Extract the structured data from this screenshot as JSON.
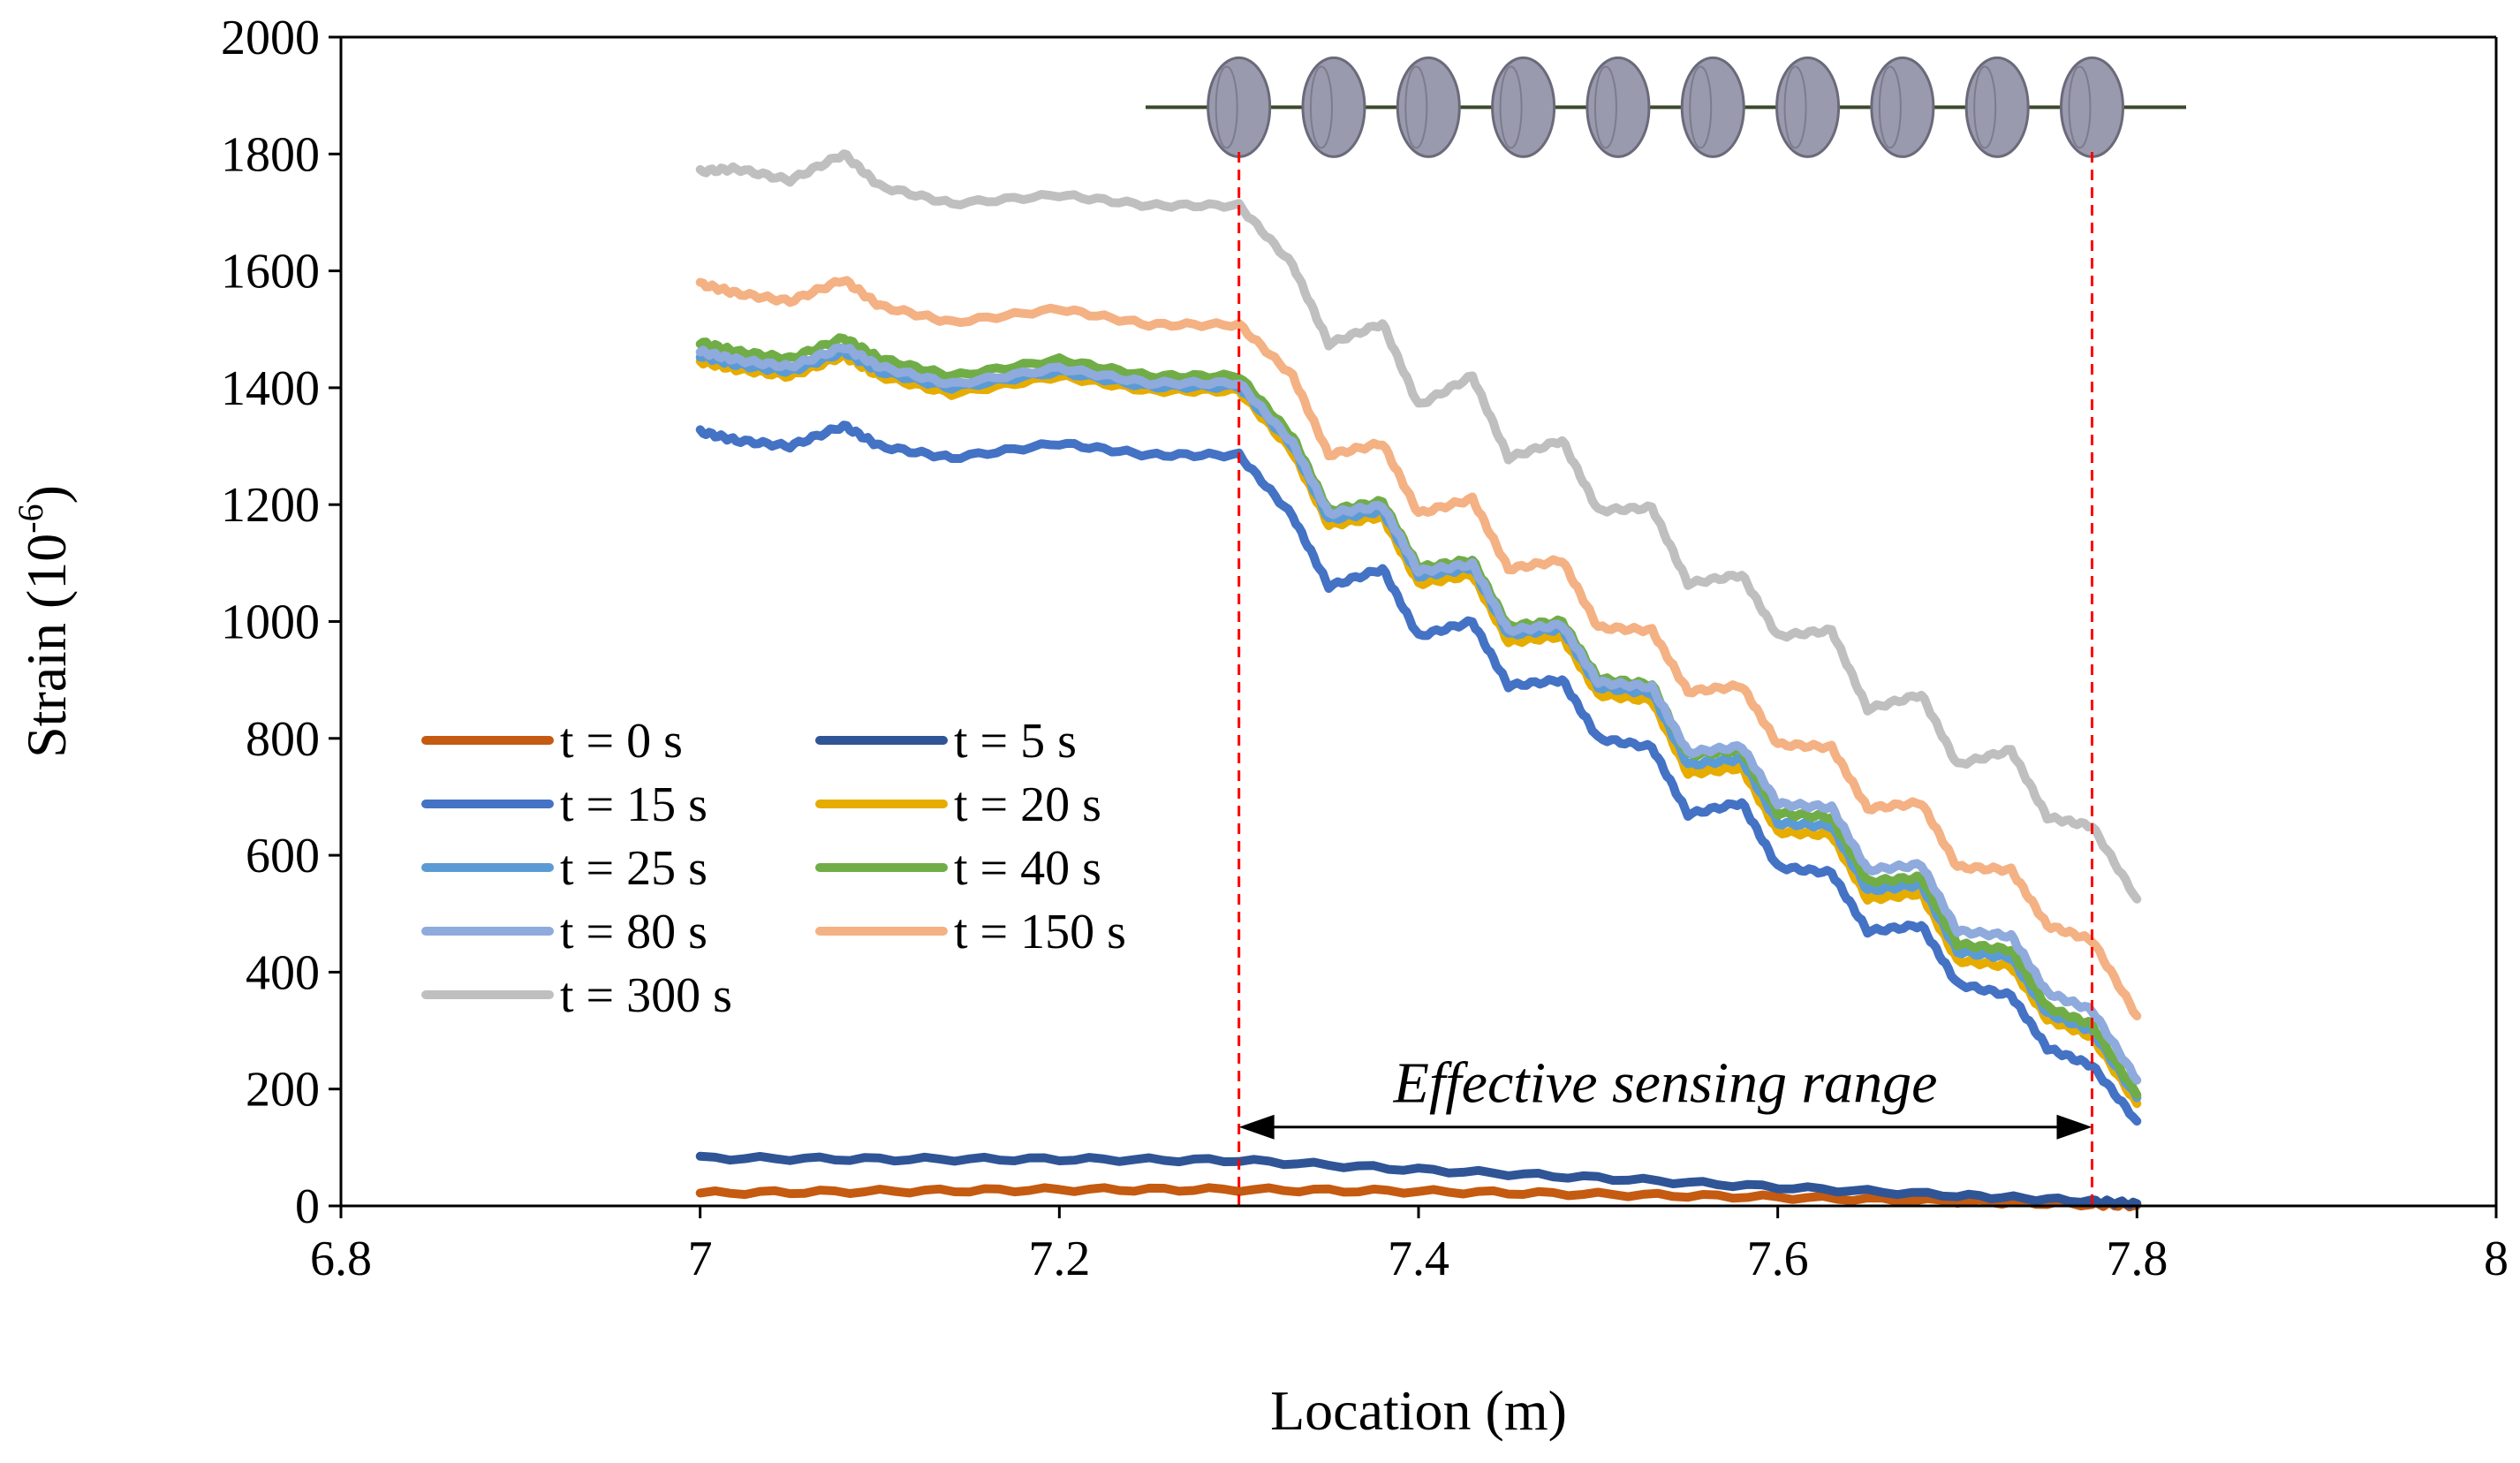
{
  "chart_data": {
    "type": "line",
    "title": "",
    "xlabel": "Location (m)",
    "ylabel": "Strain (10",
    "ylabel_sup": "-6",
    "ylabel_close": ")",
    "xlim": [
      6.8,
      8
    ],
    "ylim": [
      0,
      2000
    ],
    "xticks": [
      6.8,
      7,
      7.2,
      7.4,
      7.6,
      7.8,
      8
    ],
    "xtick_labels": [
      "6.8",
      "7",
      "7.2",
      "7.4",
      "7.6",
      "7.8",
      "8"
    ],
    "yticks": [
      0,
      200,
      400,
      600,
      800,
      1000,
      1200,
      1400,
      1600,
      1800,
      2000
    ],
    "ytick_labels": [
      "0",
      "200",
      "400",
      "600",
      "800",
      "1000",
      "1200",
      "1400",
      "1600",
      "1800",
      "2000"
    ],
    "grid": false,
    "legend_position": "lower-left",
    "annotation": {
      "text": "Effective sensing range",
      "x_start": 7.3,
      "x_end": 7.775,
      "y": 135
    },
    "sensing_marks": [
      7.3,
      7.775
    ],
    "sensor_elements": {
      "count": 10,
      "x_start": 7.3,
      "x_end": 7.775,
      "y": 1880
    },
    "series": [
      {
        "name": "t = 0 s",
        "color": "#C55A11",
        "x": [
          7.0,
          7.1,
          7.2,
          7.3,
          7.4,
          7.5,
          7.6,
          7.7,
          7.775,
          7.8
        ],
        "values": [
          22,
          25,
          28,
          28,
          25,
          20,
          15,
          8,
          3,
          1
        ]
      },
      {
        "name": "t = 5 s",
        "color": "#2F5597",
        "x": [
          7.0,
          7.1,
          7.2,
          7.3,
          7.4,
          7.5,
          7.6,
          7.7,
          7.775,
          7.8
        ],
        "values": [
          82,
          80,
          80,
          78,
          62,
          48,
          32,
          18,
          8,
          4
        ]
      },
      {
        "name": "t = 15 s",
        "color": "#4472C4",
        "x": [
          7.0,
          7.02,
          7.05,
          7.08,
          7.1,
          7.14,
          7.2,
          7.25,
          7.3,
          7.33,
          7.35,
          7.38,
          7.4,
          7.43,
          7.45,
          7.48,
          7.5,
          7.53,
          7.55,
          7.58,
          7.6,
          7.63,
          7.65,
          7.68,
          7.7,
          7.73,
          7.75,
          7.775,
          7.8
        ],
        "values": [
          1325,
          1310,
          1300,
          1335,
          1300,
          1280,
          1305,
          1285,
          1285,
          1180,
          1060,
          1090,
          975,
          1000,
          890,
          900,
          800,
          785,
          670,
          690,
          580,
          570,
          470,
          480,
          380,
          360,
          270,
          240,
          145
        ]
      },
      {
        "name": "t = 20 s",
        "color": "#E6AC00",
        "x": [
          7.0,
          7.02,
          7.05,
          7.08,
          7.1,
          7.14,
          7.2,
          7.25,
          7.3,
          7.33,
          7.35,
          7.38,
          7.4,
          7.43,
          7.45,
          7.48,
          7.5,
          7.53,
          7.55,
          7.58,
          7.6,
          7.63,
          7.65,
          7.68,
          7.7,
          7.73,
          7.75,
          7.775,
          7.8
        ],
        "values": [
          1445,
          1432,
          1420,
          1455,
          1420,
          1390,
          1420,
          1395,
          1395,
          1290,
          1165,
          1180,
          1065,
          1080,
          965,
          975,
          875,
          865,
          740,
          750,
          640,
          635,
          525,
          535,
          420,
          410,
          320,
          290,
          175
        ]
      },
      {
        "name": "t = 25 s",
        "color": "#5B9BD5",
        "x": [
          7.0,
          7.02,
          7.05,
          7.08,
          7.1,
          7.14,
          7.2,
          7.25,
          7.3,
          7.33,
          7.35,
          7.38,
          7.4,
          7.43,
          7.45,
          7.48,
          7.5,
          7.53,
          7.55,
          7.58,
          7.6,
          7.63,
          7.65,
          7.68,
          7.7,
          7.73,
          7.75,
          7.775,
          7.8
        ],
        "values": [
          1455,
          1440,
          1428,
          1462,
          1428,
          1400,
          1428,
          1402,
          1402,
          1300,
          1175,
          1190,
          1078,
          1092,
          978,
          988,
          888,
          878,
          755,
          765,
          655,
          650,
          540,
          550,
          435,
          425,
          330,
          300,
          185
        ]
      },
      {
        "name": "t = 40 s",
        "color": "#70AD47",
        "x": [
          7.0,
          7.02,
          7.05,
          7.08,
          7.1,
          7.14,
          7.2,
          7.25,
          7.3,
          7.33,
          7.35,
          7.38,
          7.4,
          7.43,
          7.45,
          7.48,
          7.5,
          7.53,
          7.55,
          7.58,
          7.6,
          7.63,
          7.65,
          7.68,
          7.7,
          7.73,
          7.75,
          7.775,
          7.8
        ],
        "values": [
          1478,
          1462,
          1450,
          1485,
          1450,
          1420,
          1448,
          1420,
          1420,
          1315,
          1190,
          1205,
          1092,
          1105,
          992,
          1000,
          902,
          892,
          772,
          780,
          672,
          665,
          555,
          562,
          448,
          438,
          340,
          310,
          190
        ]
      },
      {
        "name": "t = 80 s",
        "color": "#8FAADC",
        "x": [
          7.0,
          7.02,
          7.05,
          7.08,
          7.1,
          7.14,
          7.2,
          7.25,
          7.3,
          7.33,
          7.35,
          7.38,
          7.4,
          7.43,
          7.45,
          7.48,
          7.5,
          7.53,
          7.55,
          7.58,
          7.6,
          7.63,
          7.65,
          7.68,
          7.7,
          7.73,
          7.75,
          7.775,
          7.8
        ],
        "values": [
          1462,
          1448,
          1436,
          1470,
          1436,
          1406,
          1434,
          1408,
          1408,
          1305,
          1185,
          1198,
          1086,
          1098,
          985,
          994,
          896,
          888,
          776,
          786,
          688,
          682,
          575,
          584,
          470,
          462,
          365,
          335,
          215
        ]
      },
      {
        "name": "t = 150 s",
        "color": "#F4B183",
        "x": [
          7.0,
          7.02,
          7.05,
          7.08,
          7.1,
          7.14,
          7.2,
          7.25,
          7.3,
          7.33,
          7.35,
          7.38,
          7.4,
          7.43,
          7.45,
          7.48,
          7.5,
          7.53,
          7.55,
          7.58,
          7.6,
          7.63,
          7.65,
          7.68,
          7.7,
          7.73,
          7.75,
          7.775,
          7.8
        ],
        "values": [
          1578,
          1562,
          1548,
          1585,
          1540,
          1512,
          1535,
          1508,
          1508,
          1420,
          1285,
          1305,
          1185,
          1210,
          1090,
          1105,
          990,
          985,
          880,
          890,
          790,
          785,
          680,
          690,
          580,
          575,
          480,
          455,
          325
        ]
      },
      {
        "name": "t = 300 s",
        "color": "#BFBFBF",
        "x": [
          7.0,
          7.02,
          7.05,
          7.08,
          7.1,
          7.14,
          7.2,
          7.25,
          7.3,
          7.33,
          7.35,
          7.38,
          7.4,
          7.43,
          7.45,
          7.48,
          7.5,
          7.53,
          7.55,
          7.58,
          7.6,
          7.63,
          7.65,
          7.68,
          7.7,
          7.73,
          7.75,
          7.775,
          7.8
        ],
        "values": [
          1770,
          1775,
          1755,
          1800,
          1745,
          1715,
          1730,
          1712,
          1712,
          1610,
          1475,
          1510,
          1370,
          1420,
          1280,
          1310,
          1190,
          1195,
          1065,
          1080,
          975,
          985,
          850,
          875,
          755,
          780,
          665,
          650,
          525
        ]
      }
    ]
  }
}
